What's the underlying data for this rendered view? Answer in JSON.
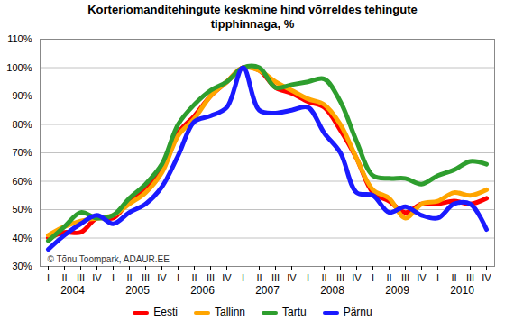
{
  "chart_data": {
    "type": "line",
    "title": "Korteriomanditehingute keskmine hind võrreldes tehingute tipphinnaga, %",
    "categories": [
      "I",
      "II",
      "III",
      "IV",
      "I",
      "II",
      "III",
      "IV",
      "I",
      "II",
      "III",
      "IV",
      "I",
      "II",
      "III",
      "IV",
      "I",
      "II",
      "III",
      "IV",
      "I",
      "II",
      "III",
      "IV",
      "I",
      "II",
      "III",
      "IV"
    ],
    "years": [
      "2004",
      "2005",
      "2006",
      "2007",
      "2008",
      "2009",
      "2010"
    ],
    "annotation": "© Tõnu Toompark, ADAUR.EE",
    "series": [
      {
        "name": "Eesti",
        "color": "#ff0000",
        "values": [
          40,
          42,
          42,
          47,
          47,
          53,
          57,
          65,
          77,
          83,
          90,
          95,
          100,
          99,
          93,
          91,
          88,
          86,
          78,
          68,
          56,
          53,
          49,
          52,
          52,
          53,
          52,
          54
        ]
      },
      {
        "name": "Tallinn",
        "color": "#ffa500",
        "values": [
          41,
          44,
          46,
          47,
          48,
          52,
          56,
          63,
          76,
          82,
          90,
          95,
          100,
          99,
          95,
          92,
          89,
          87,
          80,
          68,
          57,
          54,
          47,
          52,
          53,
          56,
          55,
          57
        ]
      },
      {
        "name": "Tartu",
        "color": "#2e9e2e",
        "values": [
          39,
          44,
          49,
          47,
          48,
          54,
          59,
          66,
          80,
          87,
          92,
          95,
          100,
          100,
          93,
          94,
          95,
          96,
          88,
          74,
          62,
          61,
          61,
          59,
          62,
          64,
          67,
          66
        ]
      },
      {
        "name": "Pärnu",
        "color": "#1a1aff",
        "values": [
          36,
          41,
          45,
          48,
          45,
          49,
          52,
          58,
          69,
          81,
          83,
          86,
          100,
          85,
          84,
          85,
          86,
          77,
          70,
          56,
          55,
          49,
          51,
          48,
          47,
          52,
          52,
          43
        ]
      }
    ],
    "ylim": [
      30,
      110
    ],
    "yticks": [
      {
        "value": 30,
        "label": "30%"
      },
      {
        "value": 40,
        "label": "40%"
      },
      {
        "value": 50,
        "label": "50%"
      },
      {
        "value": 60,
        "label": "60%"
      },
      {
        "value": 70,
        "label": "70%"
      },
      {
        "value": 80,
        "label": "80%"
      },
      {
        "value": 90,
        "label": "90%"
      },
      {
        "value": 100,
        "label": "100%"
      },
      {
        "value": 110,
        "label": "110%"
      }
    ],
    "grid": true,
    "legend": "bottom"
  }
}
